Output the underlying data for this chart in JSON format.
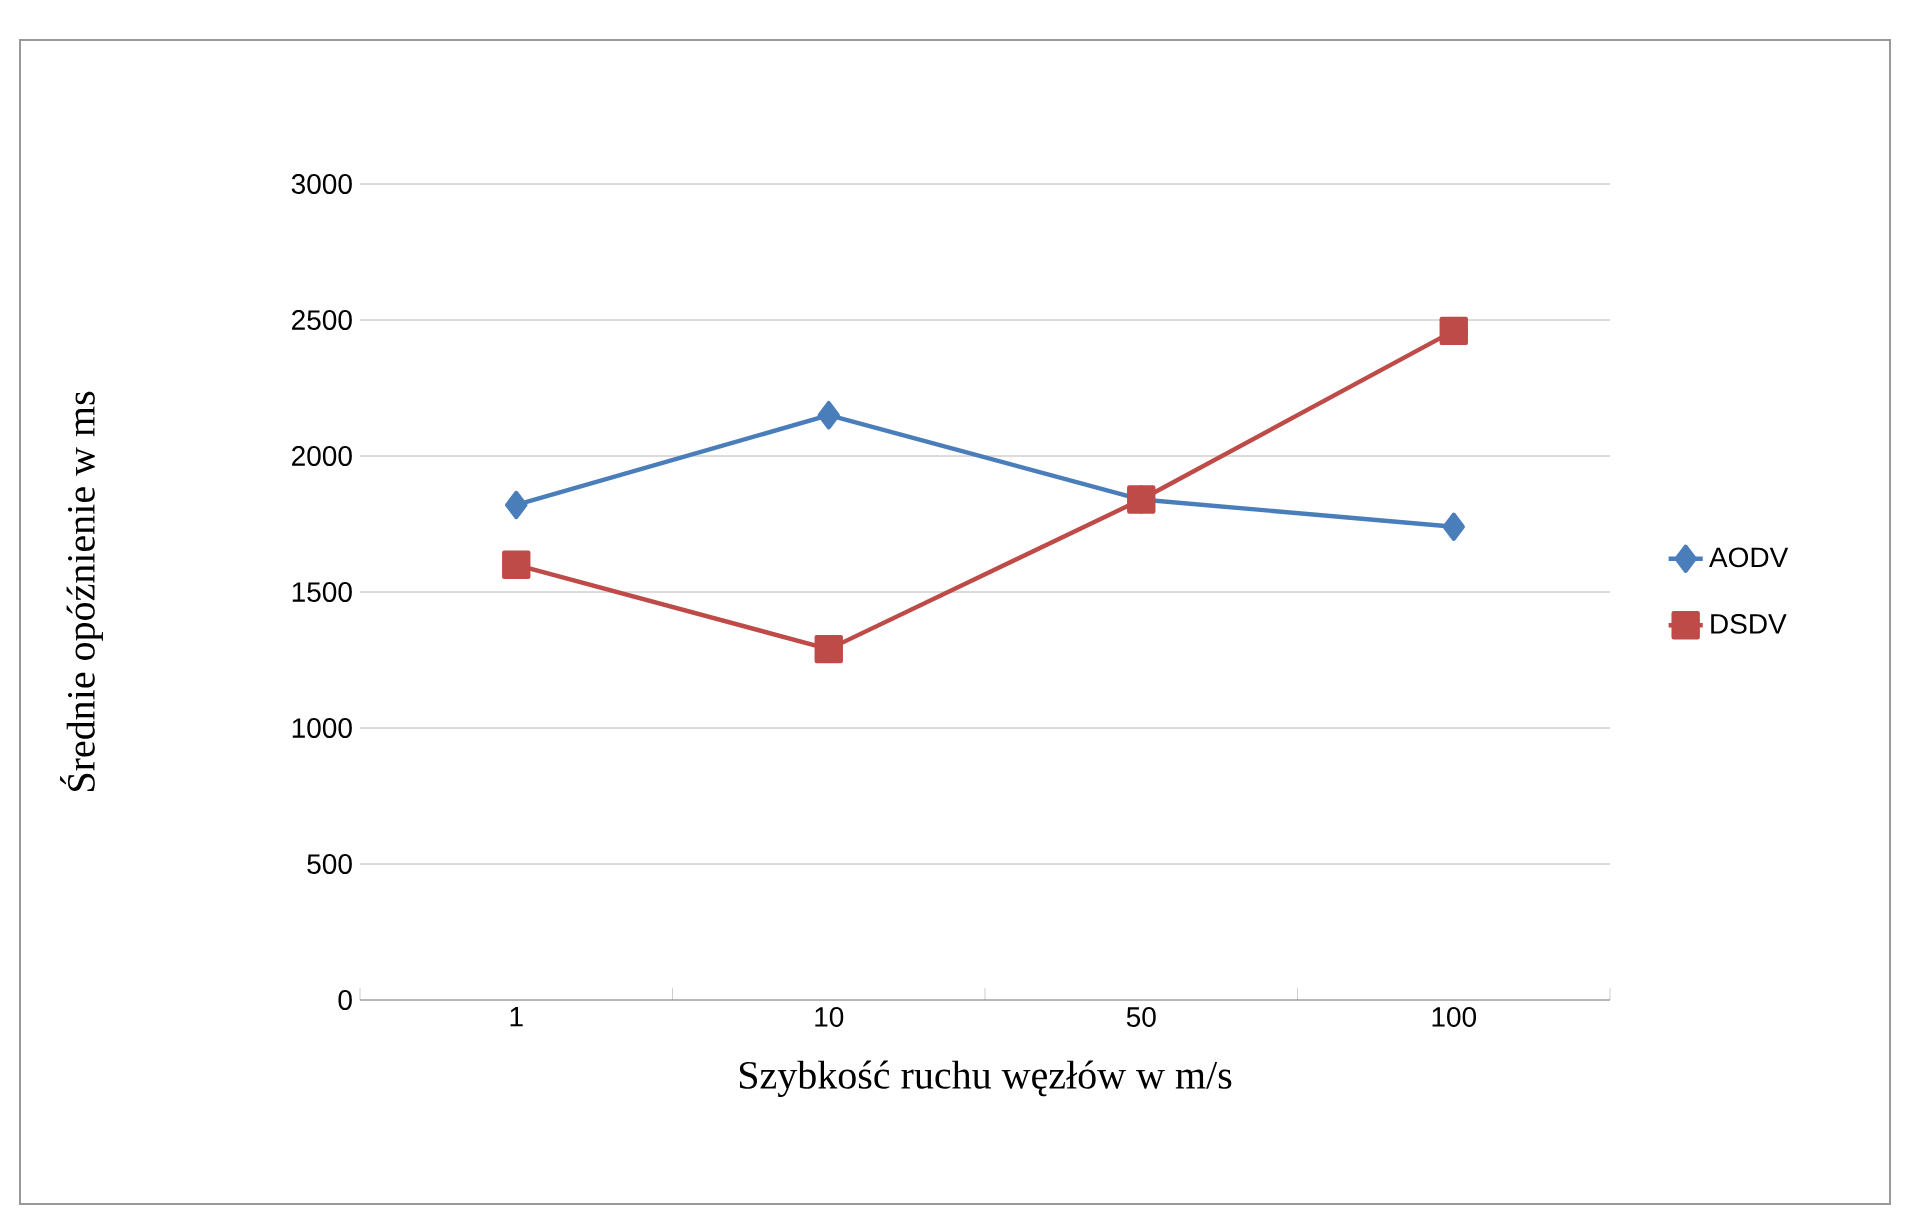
{
  "chart_data": {
    "type": "line",
    "xlabel": "Szybkość ruchu węzłów w m/s",
    "ylabel": "Średnie opóźnienie w ms",
    "categories": [
      "1",
      "10",
      "50",
      "100"
    ],
    "series": [
      {
        "name": "AODV",
        "color": "#4a7ebb",
        "marker": "diamond",
        "values": [
          1820,
          2150,
          1840,
          1740
        ]
      },
      {
        "name": "DSDV",
        "color": "#be4b48",
        "marker": "square",
        "values": [
          1600,
          1290,
          1840,
          2460
        ]
      }
    ],
    "ylim": [
      0,
      3000
    ],
    "yticks": [
      0,
      500,
      1000,
      1500,
      2000,
      2500,
      3000
    ],
    "grid": "y",
    "legend": "right"
  }
}
